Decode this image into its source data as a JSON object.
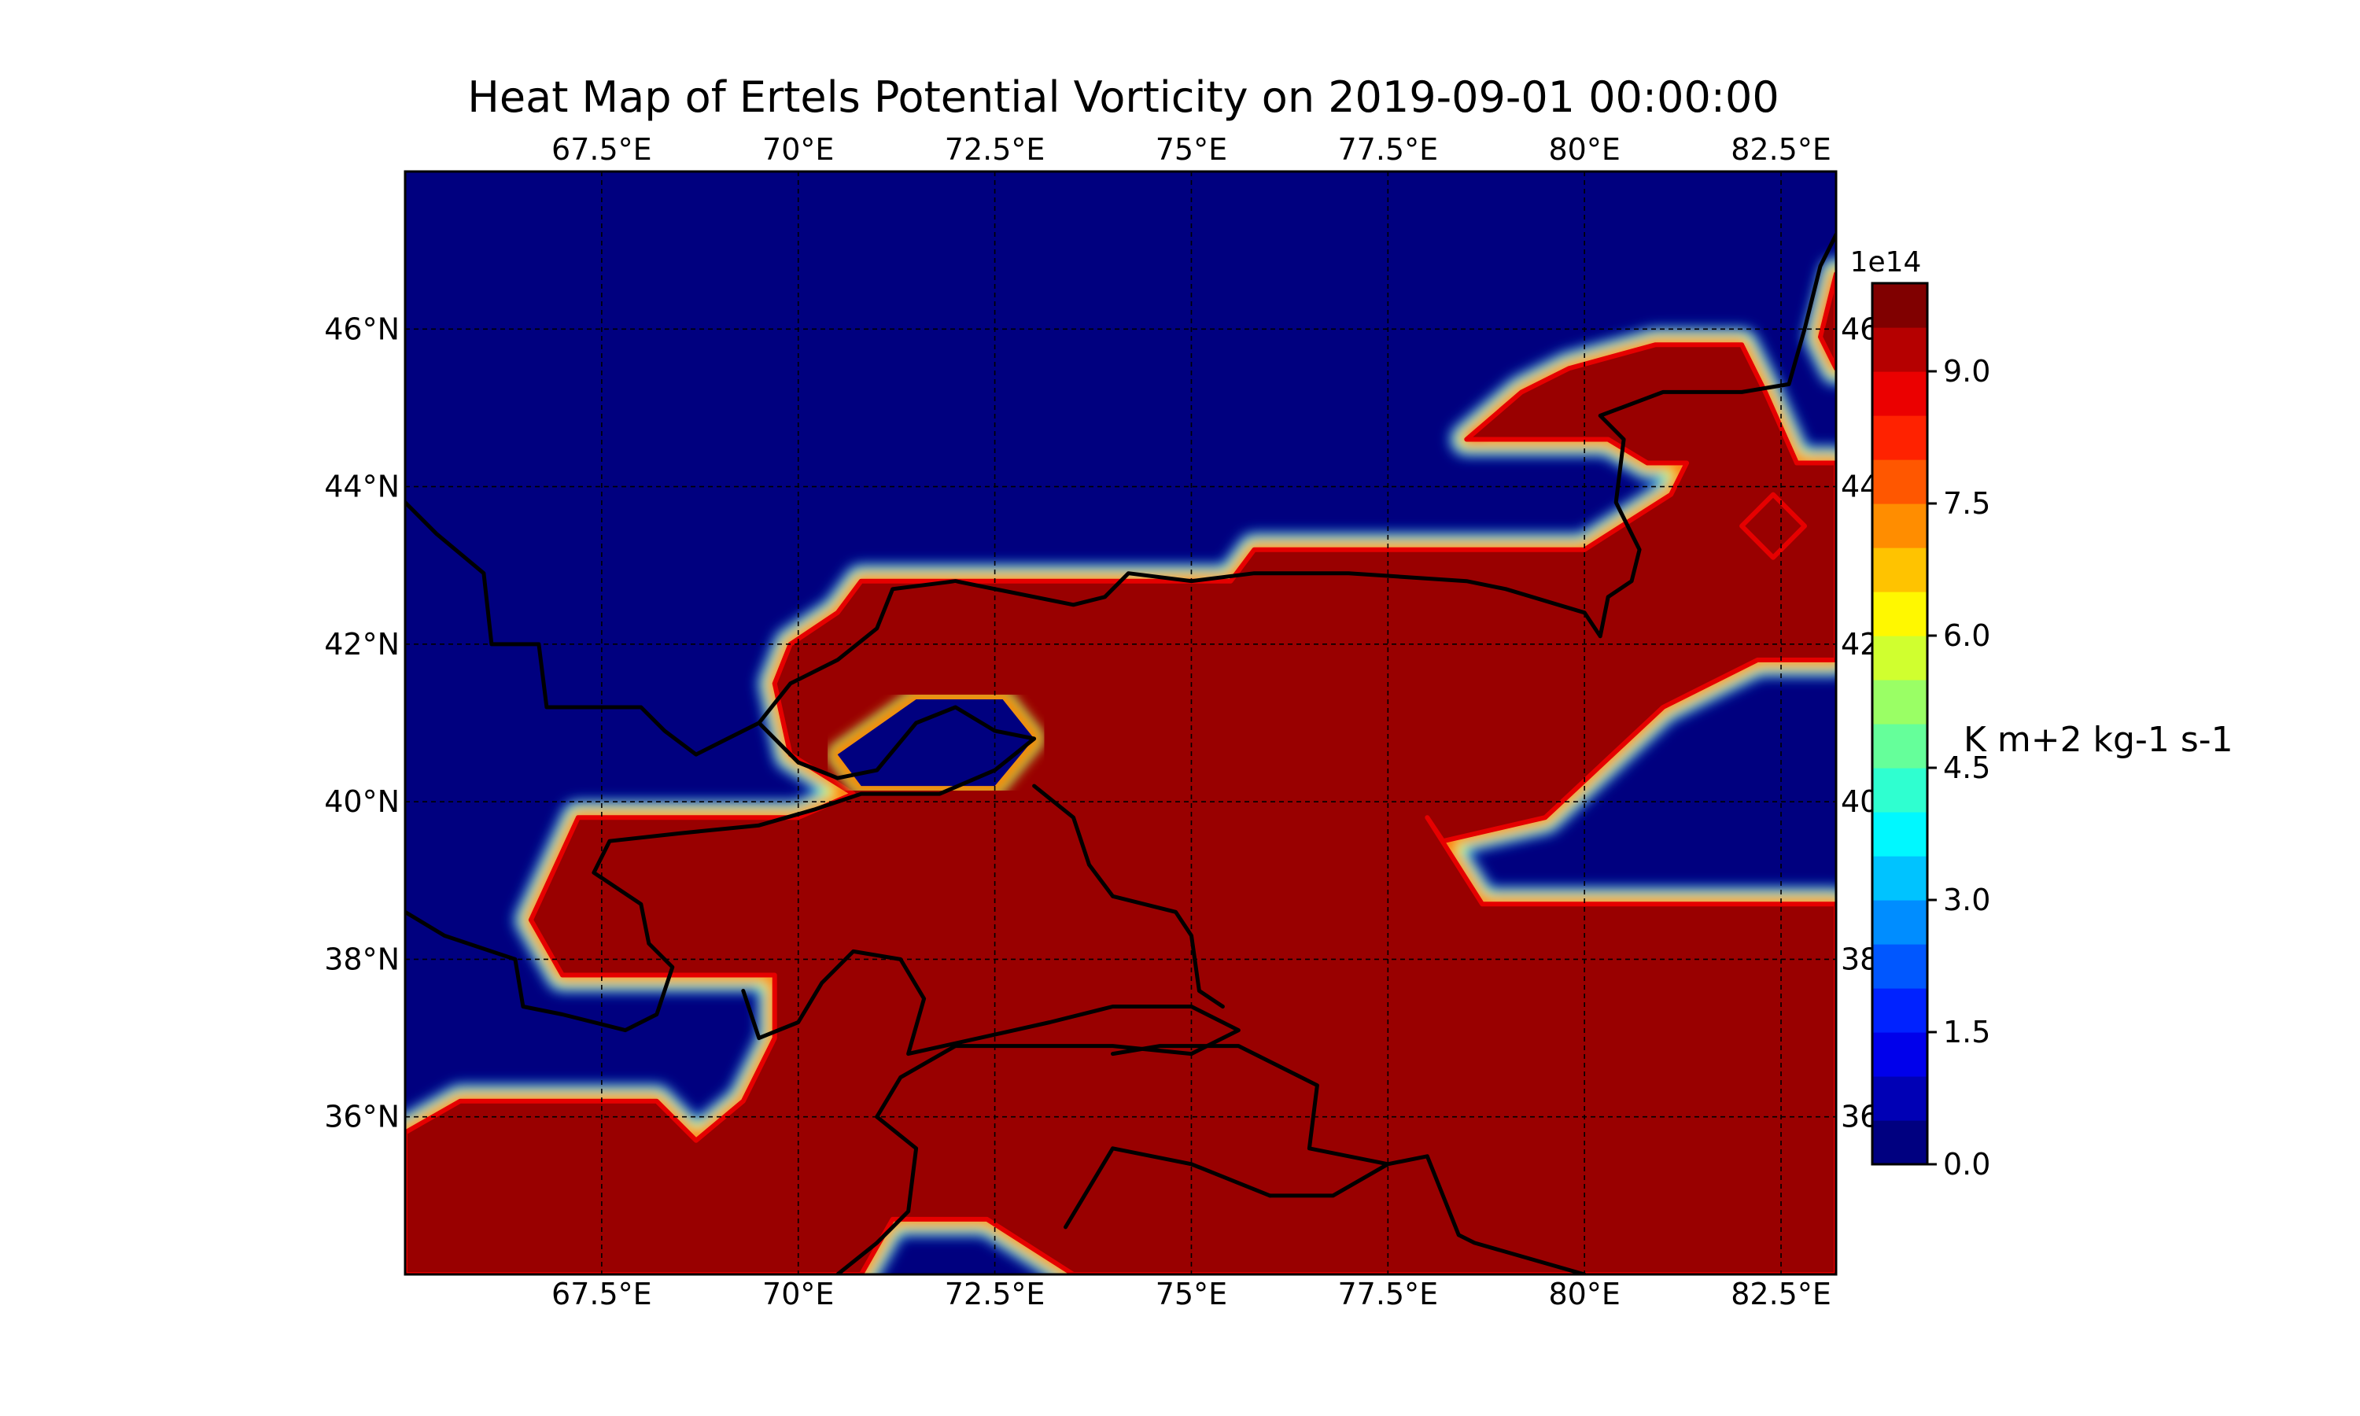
{
  "title": "Heat Map of Ertels Potential Vorticity on 2019-09-01 00:00:00",
  "colormap": "jet",
  "colors": {
    "low": "#00007f",
    "high": "#990000"
  },
  "map": {
    "lon_range": [
      65,
      83.2
    ],
    "lat_range": [
      34,
      48
    ],
    "lon_ticks": [
      67.5,
      70,
      72.5,
      75,
      77.5,
      80,
      82.5
    ],
    "lat_ticks": [
      36,
      38,
      40,
      42,
      44,
      46
    ],
    "lon_tick_labels": [
      "67.5°E",
      "70°E",
      "72.5°E",
      "75°E",
      "77.5°E",
      "80°E",
      "82.5°E"
    ],
    "lat_tick_labels": [
      "36°N",
      "38°N",
      "40°N",
      "42°N",
      "44°N",
      "46°N"
    ],
    "gridlines": true,
    "gridline_style": "dashed",
    "high_regions": [
      [
        [
          65.0,
          35.8
        ],
        [
          65.7,
          36.2
        ],
        [
          68.2,
          36.2
        ],
        [
          68.7,
          35.7
        ],
        [
          69.3,
          36.2
        ],
        [
          69.7,
          37.0
        ],
        [
          69.7,
          37.8
        ],
        [
          67.0,
          37.8
        ],
        [
          66.6,
          38.5
        ],
        [
          67.2,
          39.8
        ],
        [
          70.0,
          39.8
        ],
        [
          70.7,
          40.1
        ],
        [
          69.9,
          40.6
        ],
        [
          69.7,
          41.5
        ],
        [
          69.9,
          42.0
        ],
        [
          70.5,
          42.4
        ],
        [
          70.8,
          42.8
        ],
        [
          75.5,
          42.8
        ],
        [
          75.8,
          43.2
        ],
        [
          80.0,
          43.2
        ],
        [
          81.1,
          43.9
        ],
        [
          81.3,
          44.3
        ],
        [
          80.8,
          44.3
        ],
        [
          80.3,
          44.6
        ],
        [
          78.5,
          44.6
        ],
        [
          79.2,
          45.2
        ],
        [
          79.8,
          45.5
        ],
        [
          80.9,
          45.8
        ],
        [
          82.0,
          45.8
        ],
        [
          82.3,
          45.2
        ],
        [
          82.7,
          44.3
        ],
        [
          83.2,
          44.3
        ],
        [
          83.2,
          41.8
        ],
        [
          82.2,
          41.8
        ],
        [
          81.0,
          41.2
        ],
        [
          79.5,
          39.8
        ],
        [
          78.2,
          39.5
        ],
        [
          78.0,
          39.8
        ],
        [
          78.7,
          38.7
        ],
        [
          83.2,
          38.7
        ],
        [
          83.2,
          34.0
        ],
        [
          73.5,
          34.0
        ],
        [
          72.4,
          34.7
        ],
        [
          71.2,
          34.7
        ],
        [
          70.8,
          34.0
        ],
        [
          65.0,
          34.0
        ]
      ],
      [
        [
          82.0,
          43.5
        ],
        [
          82.4,
          43.1
        ],
        [
          82.8,
          43.5
        ],
        [
          82.4,
          43.9
        ]
      ],
      [
        [
          83.0,
          45.9
        ],
        [
          83.2,
          45.5
        ],
        [
          83.2,
          46.7
        ]
      ]
    ],
    "low_holes": [
      [
        [
          70.5,
          40.6
        ],
        [
          71.5,
          41.3
        ],
        [
          72.6,
          41.3
        ],
        [
          73.0,
          40.8
        ],
        [
          72.5,
          40.2
        ],
        [
          70.8,
          40.2
        ]
      ]
    ],
    "borders": [
      [
        [
          65.0,
          43.8
        ],
        [
          65.4,
          43.4
        ],
        [
          66.0,
          42.9
        ],
        [
          66.1,
          42.0
        ],
        [
          66.7,
          42.0
        ],
        [
          66.8,
          41.2
        ],
        [
          68.0,
          41.2
        ],
        [
          68.3,
          40.9
        ],
        [
          68.7,
          40.6
        ],
        [
          69.1,
          40.8
        ],
        [
          69.5,
          41.0
        ],
        [
          69.9,
          41.5
        ],
        [
          70.5,
          41.8
        ],
        [
          71.0,
          42.2
        ],
        [
          71.2,
          42.7
        ],
        [
          72.0,
          42.8
        ],
        [
          73.5,
          42.5
        ],
        [
          73.9,
          42.6
        ],
        [
          74.2,
          42.9
        ],
        [
          75.0,
          42.8
        ],
        [
          75.8,
          42.9
        ],
        [
          77.0,
          42.9
        ],
        [
          78.5,
          42.8
        ],
        [
          79.0,
          42.7
        ],
        [
          80.0,
          42.4
        ],
        [
          80.2,
          42.1
        ],
        [
          80.3,
          42.6
        ],
        [
          80.6,
          42.8
        ],
        [
          80.7,
          43.2
        ],
        [
          80.4,
          43.8
        ],
        [
          80.5,
          44.6
        ],
        [
          80.2,
          44.9
        ],
        [
          81.0,
          45.2
        ],
        [
          82.0,
          45.2
        ],
        [
          82.6,
          45.3
        ],
        [
          82.8,
          46.0
        ],
        [
          83.0,
          46.8
        ],
        [
          83.2,
          47.2
        ]
      ],
      [
        [
          69.5,
          41.0
        ],
        [
          70.0,
          40.5
        ],
        [
          70.5,
          40.3
        ],
        [
          71.0,
          40.4
        ],
        [
          71.5,
          41.0
        ],
        [
          72.0,
          41.2
        ],
        [
          72.5,
          40.9
        ],
        [
          73.0,
          40.8
        ],
        [
          72.5,
          40.4
        ],
        [
          71.8,
          40.1
        ],
        [
          70.8,
          40.1
        ],
        [
          70.2,
          39.9
        ],
        [
          69.5,
          39.7
        ],
        [
          68.5,
          39.6
        ],
        [
          67.6,
          39.5
        ],
        [
          67.4,
          39.1
        ],
        [
          67.7,
          38.9
        ],
        [
          68.0,
          38.7
        ],
        [
          68.1,
          38.2
        ],
        [
          68.4,
          37.9
        ],
        [
          68.2,
          37.3
        ],
        [
          67.8,
          37.1
        ],
        [
          67.0,
          37.3
        ],
        [
          66.5,
          37.4
        ],
        [
          66.4,
          38.0
        ],
        [
          65.5,
          38.3
        ],
        [
          65.0,
          38.6
        ]
      ],
      [
        [
          69.3,
          37.6
        ],
        [
          69.5,
          37.0
        ],
        [
          70.0,
          37.2
        ],
        [
          70.3,
          37.7
        ],
        [
          70.7,
          38.1
        ],
        [
          71.3,
          38.0
        ],
        [
          71.6,
          37.5
        ],
        [
          71.4,
          36.8
        ],
        [
          72.3,
          37.0
        ],
        [
          73.2,
          37.2
        ],
        [
          74.0,
          37.4
        ],
        [
          75.0,
          37.4
        ],
        [
          75.6,
          37.1
        ],
        [
          75.0,
          36.8
        ],
        [
          74.0,
          36.9
        ],
        [
          73.0,
          36.9
        ],
        [
          72.0,
          36.9
        ],
        [
          71.3,
          36.5
        ],
        [
          71.0,
          36.0
        ],
        [
          71.5,
          35.6
        ],
        [
          71.4,
          34.8
        ],
        [
          71.0,
          34.4
        ],
        [
          70.5,
          34.0
        ]
      ],
      [
        [
          73.0,
          40.2
        ],
        [
          73.5,
          39.8
        ],
        [
          73.7,
          39.2
        ],
        [
          74.0,
          38.8
        ],
        [
          74.8,
          38.6
        ],
        [
          75.0,
          38.3
        ],
        [
          75.1,
          37.6
        ],
        [
          75.4,
          37.4
        ]
      ],
      [
        [
          74.0,
          36.8
        ],
        [
          74.6,
          36.9
        ],
        [
          75.6,
          36.9
        ],
        [
          76.6,
          36.4
        ],
        [
          76.5,
          35.6
        ],
        [
          77.5,
          35.4
        ],
        [
          78.0,
          35.5
        ],
        [
          78.4,
          34.5
        ],
        [
          78.6,
          34.4
        ],
        [
          80.0,
          34.0
        ]
      ],
      [
        [
          76.0,
          35.0
        ],
        [
          75.0,
          35.4
        ],
        [
          74.0,
          35.6
        ],
        [
          73.4,
          34.6
        ]
      ],
      [
        [
          77.5,
          35.4
        ],
        [
          76.8,
          35.0
        ],
        [
          76.0,
          35.0
        ]
      ]
    ]
  },
  "colorbar": {
    "min": 0,
    "max": 1000000000000000.0,
    "levels": 20,
    "exponent_label": "1e14",
    "tick_values": [
      0,
      1.5,
      3.0,
      4.5,
      6.0,
      7.5,
      9.0
    ],
    "tick_labels": [
      "0.0",
      "1.5",
      "3.0",
      "4.5",
      "6.0",
      "7.5",
      "9.0"
    ],
    "label": "K m+2 kg-1 s-1"
  }
}
